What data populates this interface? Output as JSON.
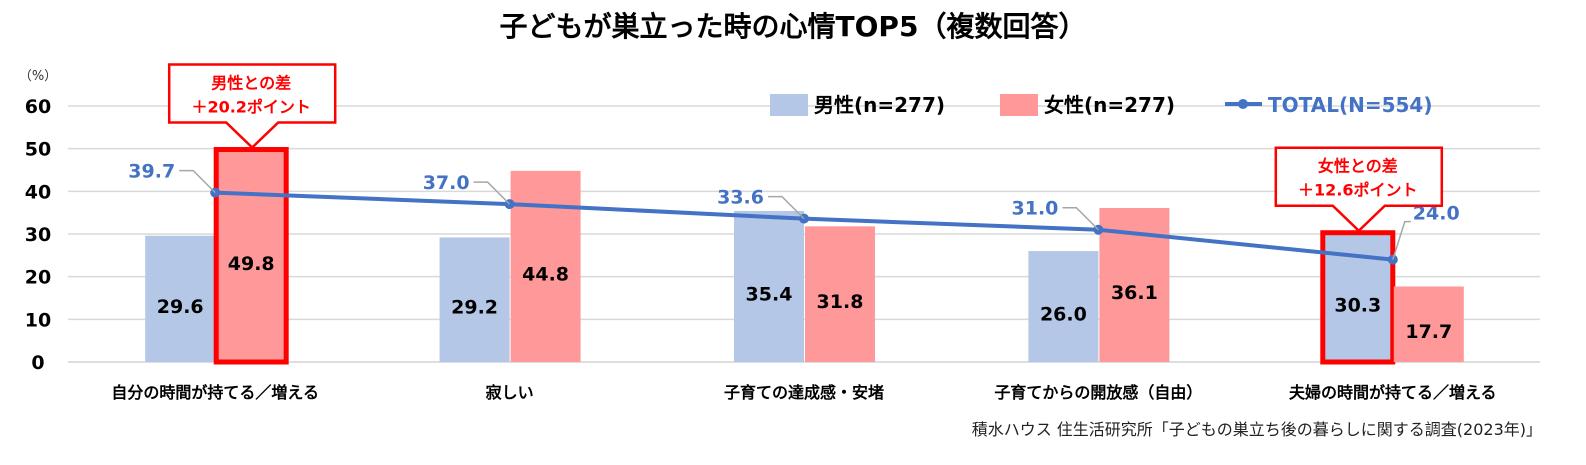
{
  "chart_data": {
    "type": "bar",
    "title": "子どもが巣立った時の心情TOP5（複数回答）",
    "unit_label": "（%）",
    "ylim": [
      0,
      60
    ],
    "yticks": [
      "0",
      "10",
      "20",
      "30",
      "40",
      "50",
      "60"
    ],
    "grid": true,
    "legend_placement": "top-right",
    "categories": [
      "自分の時間が持てる／増える",
      "寂しい",
      "子育ての達成感・安堵",
      "子育てからの開放感（自由）",
      "夫婦の時間が持てる／増える"
    ],
    "series": [
      {
        "name": "男性(n=277)",
        "type": "bar",
        "color": "#b4c7e7",
        "values": [
          29.6,
          29.2,
          35.4,
          26.0,
          30.3
        ],
        "labels": [
          "29.6",
          "29.2",
          "35.4",
          "26.0",
          "30.3"
        ]
      },
      {
        "name": "女性(n=277)",
        "type": "bar",
        "color": "#ff9999",
        "values": [
          49.8,
          44.8,
          31.8,
          36.1,
          17.7
        ],
        "labels": [
          "49.8",
          "44.8",
          "31.8",
          "36.1",
          "17.7"
        ]
      },
      {
        "name": "TOTAL(N=554)",
        "type": "line",
        "color": "#4472c4",
        "values": [
          39.7,
          37.0,
          33.6,
          31.0,
          24.0
        ],
        "labels": [
          "39.7",
          "37.0",
          "33.6",
          "31.0",
          "24.0"
        ]
      }
    ],
    "annotations": [
      {
        "category_index": 0,
        "series_index": 1,
        "line1": "男性との差",
        "line2": "＋20.2ポイント"
      },
      {
        "category_index": 4,
        "series_index": 0,
        "line1": "女性との差",
        "line2": "＋12.6ポイント"
      }
    ],
    "highlight_color": "#ff0000",
    "source": "積水ハウス 住生活研究所「子どもの巣立ち後の暮らしに関する調査(2023年)」"
  }
}
